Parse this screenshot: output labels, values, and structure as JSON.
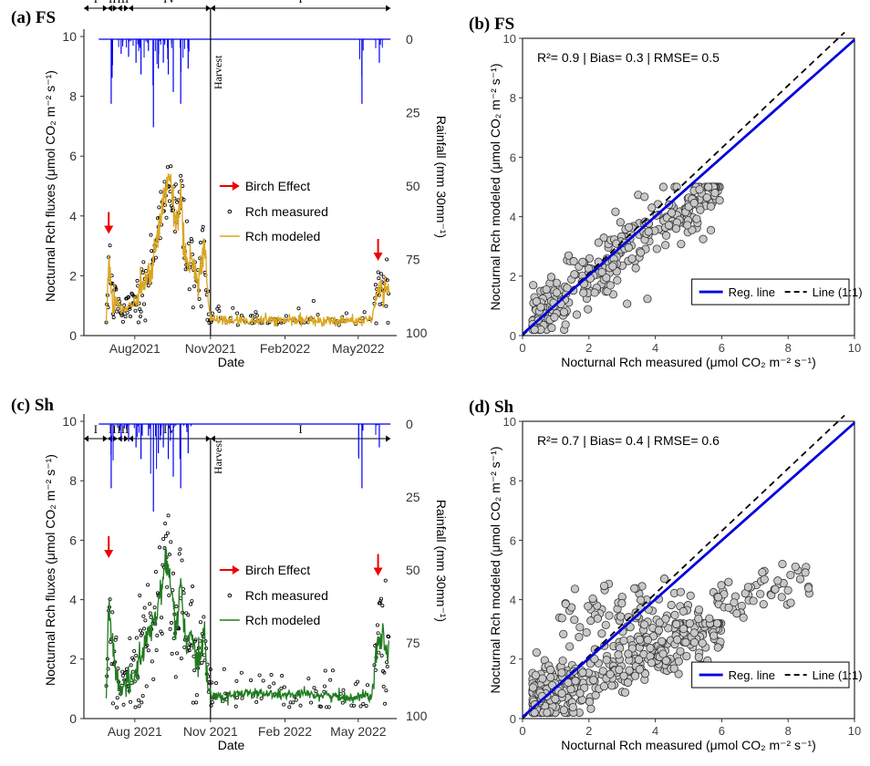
{
  "chart_data": [
    {
      "id": "a",
      "panel_label": "(a) FS",
      "type": "line",
      "xlabel": "Date",
      "ylabel": "Nocturnal Rch fluxes (μmol CO₂ m⁻² s⁻¹)",
      "y2label": "Rainfall (mm 30mn⁻¹)",
      "ylim": [
        0,
        10
      ],
      "y2lim": [
        0,
        100
      ],
      "yticks": [
        "0",
        "2",
        "4",
        "6",
        "8",
        "10"
      ],
      "y2ticks": [
        "0",
        "25",
        "50",
        "75",
        "100"
      ],
      "xticks": [
        "Aug2021",
        "Nov2021",
        "Feb2022",
        "May2022"
      ],
      "phases": [
        "I",
        "II",
        "III",
        "IV",
        "I"
      ],
      "harvest_label": "Harvest",
      "legend": {
        "birch": "Birch Effect",
        "measured": "Rch measured",
        "modeled": "Rch modeled"
      },
      "modeled_color": "#DAA520",
      "series": [
        {
          "name": "Rch modeled",
          "x_months": [
            0,
            0.3,
            0.4,
            0.5,
            0.7,
            0.9,
            1.1,
            1.4,
            1.7,
            2.0,
            2.3,
            2.5,
            2.7,
            2.9,
            3.1,
            3.3,
            3.5,
            3.7,
            3.9,
            4.1,
            4.25,
            4.4,
            4.5,
            4.7,
            5,
            6,
            7,
            8,
            9,
            10,
            11,
            11.2,
            11.4,
            11.6
          ],
          "y": [
            0.5,
            0.5,
            2.3,
            1.5,
            1.2,
            0.9,
            0.9,
            1.1,
            1.4,
            2.0,
            3.0,
            4.2,
            4.9,
            5.0,
            3.6,
            4.8,
            2.5,
            2.6,
            1.6,
            2.0,
            3.2,
            1.2,
            0.5,
            0.6,
            0.5,
            0.5,
            0.5,
            0.5,
            0.5,
            0.5,
            0.5,
            1.5,
            1.6,
            1.4
          ]
        }
      ],
      "rainfall_spikes": {
        "x_months": [
          0.5,
          0.9,
          1.2,
          1.5,
          1.7,
          2.0,
          2.2,
          2.4,
          2.6,
          2.8,
          3.0,
          3.3,
          3.6,
          10.6,
          11.3
        ],
        "mm": [
          22,
          5,
          6,
          8,
          12,
          4,
          30,
          10,
          8,
          12,
          18,
          22,
          10,
          22,
          8
        ]
      }
    },
    {
      "id": "b",
      "panel_label": "(b) FS",
      "type": "scatter",
      "stats": "R²= 0.9 | Bias= 0.3 | RMSE= 0.5",
      "xlabel": "Nocturnal Rch measured (μmol CO₂ m⁻² s⁻¹)",
      "ylabel": "Nocturnal Rch modeled (μmol CO₂ m⁻² s⁻¹)",
      "xlim": [
        0,
        10
      ],
      "ylim": [
        0,
        10
      ],
      "ticks": [
        "0",
        "2",
        "4",
        "6",
        "8",
        "10"
      ],
      "legend": {
        "reg": "Reg. line",
        "one": "Line (1:1)"
      },
      "reg_line": {
        "slope": 0.99,
        "intercept": 0.05
      },
      "points_summary": "cloud along 1:1 line, measured 0.3–6, modeled 0.3–5"
    },
    {
      "id": "c",
      "panel_label": "(c) Sh",
      "type": "line",
      "xlabel": "Date",
      "ylabel": "Nocturnal Rch fluxes (μmol CO₂ m⁻² s⁻¹)",
      "y2label": "Rainfall (mm 30mn⁻¹)",
      "ylim": [
        0,
        10
      ],
      "y2lim": [
        0,
        100
      ],
      "yticks": [
        "0",
        "2",
        "4",
        "6",
        "8",
        "10"
      ],
      "y2ticks": [
        "0",
        "25",
        "50",
        "75",
        "100"
      ],
      "xticks": [
        "Aug 2021",
        "Nov 2021",
        "Feb 2022",
        "May 2022"
      ],
      "phases": [
        "I",
        "II",
        "III",
        "IV",
        "I"
      ],
      "harvest_label": "Harvest",
      "legend": {
        "birch": "Birch Effect",
        "measured": "Rch measured",
        "modeled": "Rch modeled"
      },
      "modeled_color": "#1E7B1E",
      "series": [
        {
          "name": "Rch modeled",
          "x_months": [
            0,
            0.3,
            0.4,
            0.5,
            0.7,
            0.9,
            1.1,
            1.4,
            1.7,
            2.0,
            2.3,
            2.5,
            2.7,
            2.9,
            3.1,
            3.3,
            3.5,
            3.7,
            3.9,
            4.1,
            4.25,
            4.4,
            4.5,
            4.7,
            5,
            6,
            7,
            8,
            9,
            10,
            11,
            11.2,
            11.4,
            11.6
          ],
          "y": [
            0.6,
            0.6,
            3.8,
            2.8,
            1.5,
            0.9,
            1.2,
            1.5,
            2.0,
            2.8,
            3.5,
            4.2,
            5.3,
            4.5,
            3.0,
            4.5,
            2.5,
            2.8,
            1.8,
            2.2,
            3.0,
            1.0,
            0.8,
            0.8,
            0.7,
            0.9,
            0.8,
            0.8,
            0.8,
            0.7,
            0.8,
            2.6,
            2.8,
            2.5
          ]
        }
      ],
      "rainfall_spikes": {
        "x_months": [
          0.5,
          0.9,
          1.2,
          1.5,
          1.7,
          2.0,
          2.2,
          2.4,
          2.6,
          2.8,
          3.0,
          3.3,
          3.6,
          10.6,
          11.3
        ],
        "mm": [
          22,
          5,
          6,
          8,
          12,
          4,
          30,
          10,
          8,
          12,
          18,
          22,
          10,
          22,
          8
        ]
      }
    },
    {
      "id": "d",
      "panel_label": "(d) Sh",
      "type": "scatter",
      "stats": "R²= 0.7 | Bias= 0.4 | RMSE= 0.6",
      "xlabel": "Nocturnal Rch measured (μmol CO₂ m⁻² s⁻¹)",
      "ylabel": "Nocturnal Rch modeled (μmol CO₂ m⁻² s⁻¹)",
      "xlim": [
        0,
        10
      ],
      "ylim": [
        0,
        10
      ],
      "ticks": [
        "0",
        "2",
        "4",
        "6",
        "8",
        "10"
      ],
      "legend": {
        "reg": "Reg. line",
        "one": "Line (1:1)"
      },
      "reg_line": {
        "slope": 0.99,
        "intercept": 0.05
      },
      "points_summary": "two clusters: modeled ~0.5–3 and ~3–5, measured 0.3–8.7"
    }
  ]
}
